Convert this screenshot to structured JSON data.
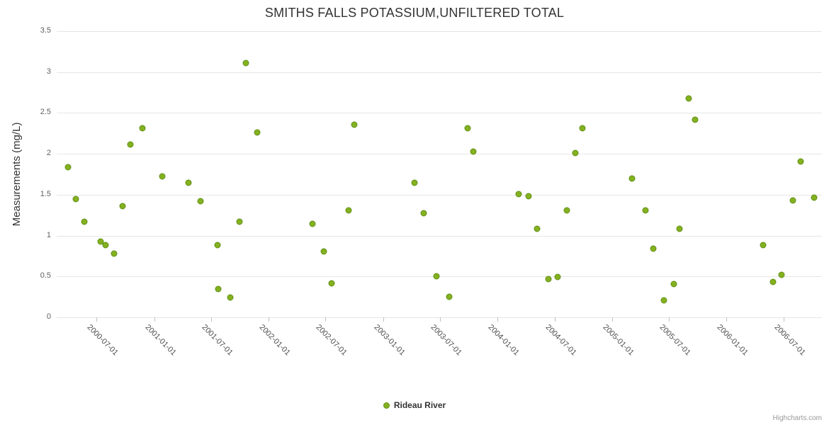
{
  "chart_data": {
    "type": "scatter",
    "title": "SMITHS FALLS POTASSIUM,UNFILTERED TOTAL",
    "xlabel": "",
    "ylabel": "Measurements (mg/L)",
    "ylim": [
      0,
      3.5
    ],
    "yticks": [
      0,
      0.5,
      1,
      1.5,
      2,
      2.5,
      3,
      3.5
    ],
    "grid": "horizontal",
    "legend_position": "bottom-center",
    "xmin": "2000-02-25",
    "xmax": "2006-11-01",
    "xticks": [
      "2000-07-01",
      "2001-01-01",
      "2001-07-01",
      "2002-01-01",
      "2002-07-01",
      "2003-01-01",
      "2003-07-01",
      "2004-01-01",
      "2004-07-01",
      "2005-01-01",
      "2005-07-01",
      "2006-01-01",
      "2006-07-01"
    ],
    "series": [
      {
        "name": "Rideau River",
        "color": "#84b11e",
        "points": [
          [
            "2000-04-02",
            1.84
          ],
          [
            "2000-04-27",
            1.45
          ],
          [
            "2000-05-24",
            1.17
          ],
          [
            "2000-07-15",
            0.93
          ],
          [
            "2000-07-30",
            0.88
          ],
          [
            "2000-08-26",
            0.78
          ],
          [
            "2000-09-22",
            1.36
          ],
          [
            "2000-10-17",
            2.11
          ],
          [
            "2000-11-25",
            2.31
          ],
          [
            "2001-01-27",
            1.72
          ],
          [
            "2001-04-20",
            1.65
          ],
          [
            "2001-05-28",
            1.42
          ],
          [
            "2001-07-22",
            0.88
          ],
          [
            "2001-07-24",
            0.35
          ],
          [
            "2001-08-31",
            0.24
          ],
          [
            "2001-09-29",
            1.17
          ],
          [
            "2001-10-20",
            3.11
          ],
          [
            "2001-11-25",
            2.26
          ],
          [
            "2002-05-22",
            1.14
          ],
          [
            "2002-06-25",
            0.81
          ],
          [
            "2002-07-22",
            0.42
          ],
          [
            "2002-09-14",
            1.31
          ],
          [
            "2002-10-02",
            2.36
          ],
          [
            "2003-04-12",
            1.65
          ],
          [
            "2003-05-11",
            1.27
          ],
          [
            "2003-06-21",
            0.5
          ],
          [
            "2003-07-31",
            0.25
          ],
          [
            "2003-09-28",
            2.31
          ],
          [
            "2003-10-16",
            2.03
          ],
          [
            "2004-03-08",
            1.51
          ],
          [
            "2004-04-09",
            1.48
          ],
          [
            "2004-05-06",
            1.08
          ],
          [
            "2004-06-11",
            0.47
          ],
          [
            "2004-07-10",
            0.49
          ],
          [
            "2004-08-09",
            1.31
          ],
          [
            "2004-09-05",
            2.01
          ],
          [
            "2004-09-27",
            2.31
          ],
          [
            "2005-03-06",
            1.7
          ],
          [
            "2005-04-18",
            1.31
          ],
          [
            "2005-05-11",
            0.84
          ],
          [
            "2005-06-16",
            0.21
          ],
          [
            "2005-07-17",
            0.41
          ],
          [
            "2005-08-04",
            1.08
          ],
          [
            "2005-09-02",
            2.68
          ],
          [
            "2005-09-23",
            2.42
          ],
          [
            "2006-04-27",
            0.88
          ],
          [
            "2006-05-29",
            0.43
          ],
          [
            "2006-06-25",
            0.52
          ],
          [
            "2006-07-31",
            1.43
          ],
          [
            "2006-08-25",
            1.91
          ],
          [
            "2006-10-07",
            1.46
          ]
        ]
      }
    ]
  },
  "legend": {
    "label": "Rideau River"
  },
  "credits": "Highcharts.com",
  "colors": {
    "point": "#84b11e",
    "point_border": "#60901a",
    "grid": "#e6e6e6",
    "axis_text": "#606060",
    "title_text": "#333333"
  }
}
